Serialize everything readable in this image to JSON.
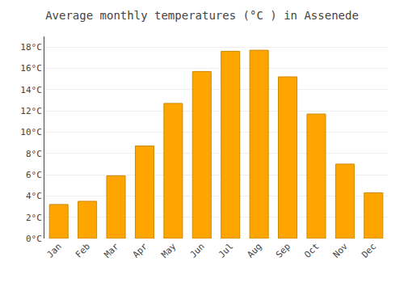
{
  "chart_data": {
    "type": "bar",
    "title": "Average monthly temperatures (°C ) in Assenede",
    "categories": [
      "Jan",
      "Feb",
      "Mar",
      "Apr",
      "May",
      "Jun",
      "Jul",
      "Aug",
      "Sep",
      "Oct",
      "Nov",
      "Dec"
    ],
    "values": [
      3.2,
      3.5,
      5.9,
      8.7,
      12.7,
      15.7,
      17.6,
      17.7,
      15.2,
      11.7,
      7.0,
      4.3
    ],
    "color": "#FFA500",
    "ylim": [
      0,
      19
    ],
    "yticks": [
      {
        "value": 0,
        "label": "0°C"
      },
      {
        "value": 2,
        "label": "2°C"
      },
      {
        "value": 4,
        "label": "4°C"
      },
      {
        "value": 6,
        "label": "6°C"
      },
      {
        "value": 8,
        "label": "8°C"
      },
      {
        "value": 10,
        "label": "10°C"
      },
      {
        "value": 12,
        "label": "12°C"
      },
      {
        "value": 14,
        "label": "14°C"
      },
      {
        "value": 16,
        "label": "16°C"
      },
      {
        "value": 18,
        "label": "18°C"
      }
    ],
    "grid": true
  }
}
